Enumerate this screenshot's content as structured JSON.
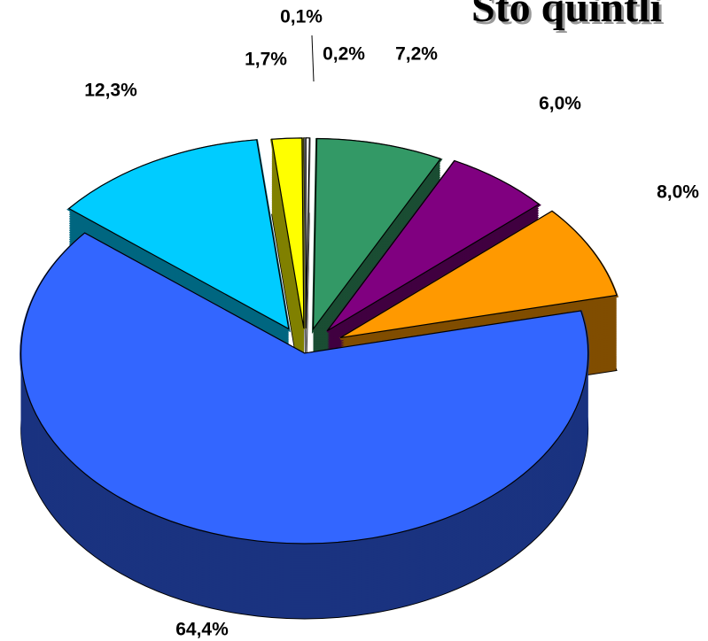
{
  "chart_data": {
    "type": "pie3d",
    "title": "Sto quintli",
    "values": [
      0.2,
      7.2,
      6.0,
      8.0,
      64.4,
      12.3,
      1.7,
      0.1
    ],
    "value_labels": [
      "0,2%",
      "7,2%",
      "6,0%",
      "8,0%",
      "64,4%",
      "12,3%",
      "1,7%",
      "0,1%"
    ],
    "colors": [
      "#ffffff",
      "#339966",
      "#800080",
      "#ff9900",
      "#3366ff",
      "#00ccff",
      "#ffff00",
      "#ffffff"
    ]
  }
}
